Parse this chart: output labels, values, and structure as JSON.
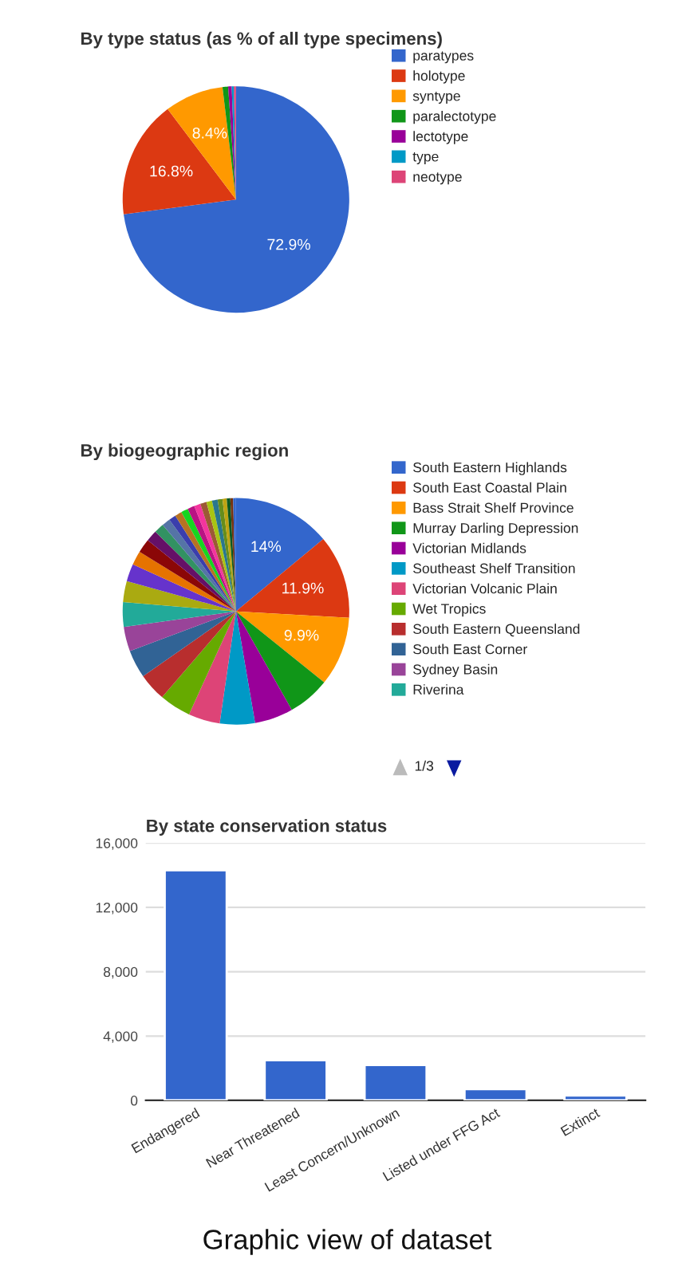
{
  "chart_data": [
    {
      "type": "pie",
      "title": "By type status (as % of all type specimens)",
      "categories": [
        "paratypes",
        "holotype",
        "syntype",
        "paralectotype",
        "lectotype",
        "type",
        "neotype"
      ],
      "values": [
        72.9,
        16.8,
        8.4,
        0.8,
        0.5,
        0.3,
        0.3
      ],
      "value_labels": [
        "72.9%",
        "16.8%",
        "8.4%",
        null,
        null,
        null,
        null
      ],
      "colors": [
        "#3366cc",
        "#dc3912",
        "#ff9900",
        "#109618",
        "#990099",
        "#0099c6",
        "#dd4477"
      ],
      "legend": "right"
    },
    {
      "type": "pie",
      "title": "By biogeographic region",
      "categories": [
        "South Eastern Highlands",
        "South East Coastal Plain",
        "Bass Strait Shelf Province",
        "Murray Darling Depression",
        "Victorian Midlands",
        "Southeast Shelf Transition",
        "Victorian Volcanic Plain",
        "Wet Tropics",
        "South Eastern Queensland",
        "South East Corner",
        "Sydney Basin",
        "Riverina",
        null,
        null,
        null,
        null,
        null,
        null,
        null,
        null,
        null,
        null,
        null,
        null,
        null,
        null,
        null,
        null,
        null,
        null,
        null,
        null
      ],
      "values": [
        14,
        11.9,
        9.9,
        6.0,
        5.5,
        5.0,
        4.5,
        4.5,
        4.0,
        4.0,
        3.5,
        3.5,
        3.0,
        2.5,
        2.0,
        2.0,
        1.6,
        1.4,
        1.2,
        1.0,
        1.0,
        1.0,
        1.0,
        0.9,
        0.9,
        0.8,
        0.8,
        0.7,
        0.6,
        0.5,
        0.4,
        0.4
      ],
      "value_labels": [
        "14%",
        "11.9%",
        "9.9%",
        null,
        null,
        null,
        null,
        null,
        null,
        null,
        null,
        null,
        null,
        null,
        null,
        null,
        null,
        null,
        null,
        null,
        null,
        null,
        null,
        null,
        null,
        null,
        null,
        null,
        null,
        null,
        null,
        null
      ],
      "colors": [
        "#3366cc",
        "#dc3912",
        "#ff9900",
        "#109618",
        "#990099",
        "#0099c6",
        "#dd4477",
        "#66aa00",
        "#b82e2e",
        "#316395",
        "#994499",
        "#22aa99",
        "#aaaa11",
        "#6633cc",
        "#e67300",
        "#8b0707",
        "#651067",
        "#329262",
        "#5574a6",
        "#3b3eac",
        "#b77322",
        "#16d620",
        "#b91383",
        "#f4359e",
        "#9c5935",
        "#a9c413",
        "#2a778d",
        "#668d1c",
        "#bea413",
        "#0c5922",
        "#743411",
        "#3366cc"
      ],
      "legend": "right",
      "annotations": [
        "1/3"
      ]
    },
    {
      "type": "bar",
      "title": "By state conservation status",
      "categories": [
        "Endangered",
        "Near Threatened",
        "Least Concern/Unknown",
        "Listed under FFG Act",
        "Extinct"
      ],
      "values": [
        14300,
        2500,
        2200,
        700,
        300
      ],
      "color": "#3366cc",
      "ylim": [
        0,
        16000
      ],
      "yticks": [
        {
          "value": 0,
          "label": "0"
        },
        {
          "value": 4000,
          "label": "4,000"
        },
        {
          "value": 8000,
          "label": "8,000"
        },
        {
          "value": 12000,
          "label": "12,000"
        },
        {
          "value": 16000,
          "label": "16,000"
        }
      ],
      "grid": "y",
      "annotations": [
        "Graphic view of dataset"
      ]
    }
  ]
}
